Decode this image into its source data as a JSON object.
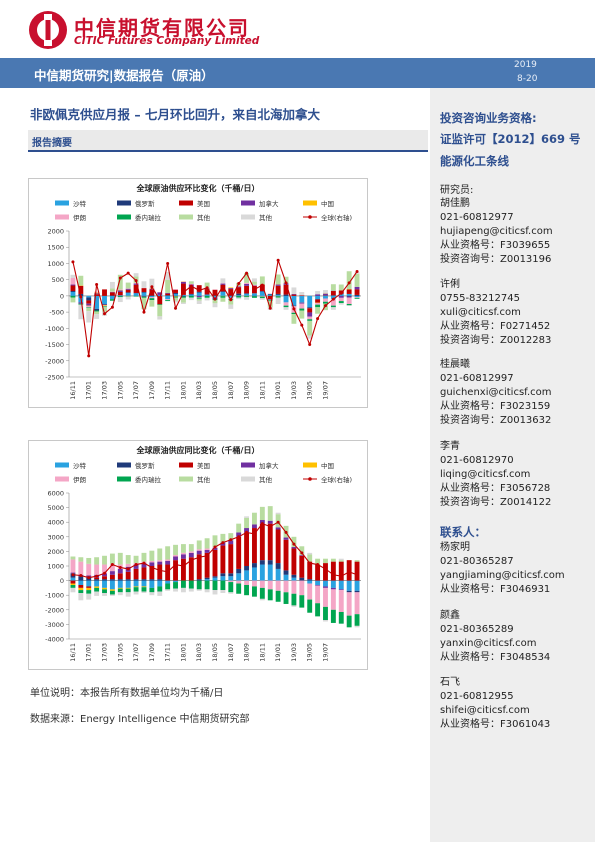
{
  "header": {
    "company_cn": "中信期货有限公司",
    "company_en": "CITIC Futures Company Limited",
    "banner": "中信期货研究|数据报告（原油）",
    "date_year": "2019",
    "date_md": "8-20"
  },
  "report": {
    "title": "非欧佩克供应月报 – 七月环比回升，来自北海加拿大",
    "section": "报告摘要",
    "unit_note": "单位说明：本报告所有数据单位均为千桶/日",
    "source_note": "数据来源：Energy Intelligence  中信期货研究部"
  },
  "sidebar": {
    "qual_title": "投资咨询业务资格:",
    "license": "证监许可【2012】669 号",
    "team": "能源化工条线",
    "researcher_label": "研究员:",
    "researchers": [
      {
        "name": "胡佳鹏",
        "phone": "021-60812977",
        "email": "hujiapeng@citicsf.com",
        "cert": "从业资格号：F3039655",
        "invest": "投资咨询号：Z0013196"
      },
      {
        "name": "许俐",
        "phone": "0755-83212745",
        "email": "xuli@citicsf.com",
        "cert": "从业资格号：F0271452",
        "invest": "投资咨询号：Z0012283"
      },
      {
        "name": "桂晨曦",
        "phone": "021-60812997",
        "email": "guichenxi@citicsf.com",
        "cert": "从业资格号：F3023159",
        "invest": "投资咨询号：Z0013632"
      },
      {
        "name": "李青",
        "phone": "021-60812970",
        "email": "liqing@citicsf.com",
        "cert": "从业资格号：F3056728",
        "invest": "投资咨询号：Z0014122"
      }
    ],
    "contact_label": "联系人：",
    "contacts": [
      {
        "name": "杨家明",
        "phone": "021-80365287",
        "email": "yangjiaming@citicsf.com",
        "cert": "从业资格号：F3046931"
      },
      {
        "name": "颜鑫",
        "phone": "021-80365289",
        "email": "yanxin@citicsf.com",
        "cert": "从业资格号：F3048534"
      },
      {
        "name": "石飞",
        "phone": "021-60812955",
        "email": "shifei@citicsf.com",
        "cert": "从业资格号：F3061043"
      }
    ]
  },
  "chart_data": [
    {
      "type": "bar",
      "title": "全球原油供应环比变化（千桶/日）",
      "legend": [
        "沙特",
        "俄罗斯",
        "美国",
        "加拿大",
        "中国",
        "伊朗",
        "委内瑞拉",
        "其他",
        "其他",
        "全球(右轴)"
      ],
      "colors": {
        "沙特": "#2aa2e0",
        "俄罗斯": "#1f3a7a",
        "美国": "#c00000",
        "加拿大": "#7030a0",
        "中国": "#ffc000",
        "伊朗": "#f4a6c6",
        "委内瑞拉": "#00a550",
        "其他": "#b8dca0",
        "其他2": "#d9d9d9",
        "全球": "#c00000"
      },
      "ylim": [
        -2500,
        2000
      ],
      "yticks": [
        2000,
        1500,
        1000,
        500,
        0,
        -500,
        -1000,
        -1500,
        -2000,
        -2500
      ],
      "xticks": [
        "16/11",
        "17/01",
        "17/03",
        "17/05",
        "17/07",
        "17/09",
        "17/11",
        "18/01",
        "18/03",
        "18/05",
        "18/07",
        "18/09",
        "18/11",
        "19/01",
        "19/03",
        "19/05",
        "19/07"
      ],
      "series": [
        {
          "name": "沙特",
          "values": [
            120,
            -200,
            -50,
            -400,
            -250,
            -100,
            20,
            90,
            80,
            100,
            -40,
            30,
            -100,
            60,
            30,
            40,
            100,
            30,
            -50,
            120,
            -60,
            20,
            60,
            80,
            130,
            40,
            30,
            -200,
            -300,
            -200,
            -350,
            -100,
            -80,
            -100,
            60,
            60,
            -40
          ]
        },
        {
          "name": "俄罗斯",
          "values": [
            30,
            60,
            -90,
            -50,
            -20,
            10,
            -10,
            20,
            10,
            20,
            10,
            -10,
            20,
            30,
            -20,
            20,
            30,
            20,
            10,
            20,
            10,
            50,
            20,
            -10,
            20,
            20,
            30,
            40,
            -20,
            -10,
            -30,
            -10,
            10,
            20,
            10,
            -20,
            30
          ]
        },
        {
          "name": "美国",
          "values": [
            170,
            250,
            -100,
            50,
            200,
            100,
            100,
            80,
            250,
            120,
            180,
            -250,
            50,
            100,
            350,
            210,
            200,
            160,
            180,
            200,
            200,
            200,
            230,
            230,
            200,
            -100,
            250,
            300,
            40,
            20,
            -130,
            -100,
            10,
            130,
            100,
            140,
            170
          ]
        },
        {
          "name": "加拿大",
          "values": [
            30,
            -40,
            -60,
            30,
            -10,
            10,
            50,
            30,
            40,
            -20,
            30,
            80,
            20,
            -10,
            50,
            80,
            -40,
            20,
            -50,
            40,
            30,
            20,
            60,
            10,
            0,
            -20,
            40,
            50,
            20,
            -30,
            -130,
            50,
            50,
            10,
            -60,
            -30,
            80
          ]
        },
        {
          "name": "中国",
          "values": [
            0,
            10,
            -10,
            20,
            -20,
            0,
            10,
            -10,
            0,
            0,
            10,
            0,
            0,
            -10,
            10,
            0,
            0,
            10,
            0,
            -10,
            20,
            0,
            -10,
            0,
            0,
            0,
            10,
            0,
            0,
            0,
            0,
            -10,
            10,
            0,
            0,
            10,
            0
          ]
        },
        {
          "name": "伊朗",
          "values": [
            200,
            0,
            -40,
            30,
            -20,
            10,
            20,
            10,
            20,
            10,
            -30,
            0,
            -30,
            20,
            10,
            20,
            -10,
            20,
            10,
            10,
            -30,
            10,
            30,
            20,
            -20,
            10,
            -10,
            -100,
            -200,
            -150,
            -80,
            -50,
            -100,
            -200,
            -100,
            -200,
            -20
          ]
        },
        {
          "name": "委内瑞拉",
          "values": [
            -50,
            -30,
            -20,
            -30,
            -20,
            -50,
            -30,
            -10,
            -20,
            -40,
            -60,
            -20,
            -30,
            -30,
            -40,
            -50,
            -40,
            -60,
            -30,
            -50,
            -30,
            -50,
            -30,
            -50,
            -50,
            -30,
            -40,
            -50,
            -40,
            -60,
            -50,
            -80,
            -60,
            -50,
            -60,
            -40,
            -30
          ]
        },
        {
          "name": "其他",
          "values": [
            -150,
            300,
            -100,
            -80,
            -150,
            100,
            450,
            180,
            200,
            -350,
            -200,
            -350,
            400,
            -100,
            -150,
            80,
            -60,
            150,
            -100,
            -120,
            -150,
            100,
            300,
            100,
            250,
            -200,
            300,
            200,
            -300,
            -250,
            -450,
            -200,
            -200,
            200,
            180,
            550,
            400
          ]
        },
        {
          "name": "其他2",
          "values": [
            100,
            -450,
            -350,
            -150,
            -120,
            200,
            -150,
            -90,
            100,
            200,
            300,
            -100,
            250,
            -50,
            -40,
            -80,
            -100,
            -80,
            -120,
            150,
            -130,
            -50,
            -80,
            100,
            -50,
            -80,
            -200,
            -80,
            200,
            100,
            -100,
            100,
            100,
            -80,
            -50,
            -20,
            50
          ]
        }
      ],
      "global": [
        1050,
        -30,
        -1850,
        350,
        -550,
        -350,
        550,
        700,
        470,
        -500,
        280,
        -120,
        1000,
        -380,
        110,
        300,
        170,
        250,
        -100,
        300,
        -120,
        380,
        700,
        200,
        330,
        -380,
        1100,
        400,
        -400,
        -900,
        -1500,
        -700,
        -300,
        -100,
        80,
        400,
        750
      ]
    },
    {
      "type": "bar",
      "title": "全球原油供应同比变化（千桶/日）",
      "legend": [
        "沙特",
        "俄罗斯",
        "美国",
        "加拿大",
        "中国",
        "伊朗",
        "委内瑞拉",
        "其他",
        "其他",
        "全球(右轴)"
      ],
      "ylim": [
        -4000,
        6000
      ],
      "yticks": [
        6000,
        5000,
        4000,
        3000,
        2000,
        1000,
        0,
        -1000,
        -2000,
        -3000,
        -4000
      ],
      "xticks": [
        "16/11",
        "17/01",
        "17/03",
        "17/05",
        "17/07",
        "17/09",
        "17/11",
        "18/01",
        "18/03",
        "18/05",
        "18/07",
        "18/09",
        "18/11",
        "19/01",
        "19/03",
        "19/05",
        "19/07"
      ],
      "series": [
        {
          "name": "沙特",
          "values": [
            200,
            -300,
            -400,
            -400,
            -500,
            -600,
            -500,
            -500,
            -400,
            -400,
            -500,
            -400,
            -200,
            -100,
            0,
            0,
            0,
            100,
            200,
            300,
            300,
            500,
            700,
            900,
            1100,
            1100,
            800,
            400,
            200,
            0,
            -200,
            -300,
            -400,
            -500,
            -600,
            -700,
            -700
          ]
        },
        {
          "name": "俄罗斯",
          "values": [
            300,
            300,
            200,
            100,
            100,
            100,
            100,
            100,
            100,
            100,
            100,
            100,
            0,
            0,
            0,
            0,
            100,
            100,
            100,
            200,
            200,
            300,
            300,
            300,
            300,
            300,
            400,
            300,
            200,
            200,
            100,
            0,
            0,
            0,
            0,
            -100,
            -100
          ]
        },
        {
          "name": "美国",
          "values": [
            -200,
            -200,
            -100,
            100,
            200,
            300,
            400,
            500,
            700,
            800,
            900,
            1000,
            1100,
            1400,
            1500,
            1600,
            1700,
            1700,
            1800,
            1900,
            2000,
            2200,
            2300,
            2400,
            2500,
            2500,
            2300,
            2100,
            1800,
            1500,
            1200,
            1100,
            1200,
            1300,
            1300,
            1400,
            1300
          ]
        },
        {
          "name": "加拿大",
          "values": [
            50,
            100,
            150,
            200,
            200,
            250,
            300,
            350,
            300,
            300,
            250,
            200,
            250,
            250,
            300,
            300,
            250,
            200,
            150,
            200,
            250,
            300,
            300,
            250,
            250,
            200,
            150,
            150,
            100,
            50,
            0,
            -50,
            -100,
            -100,
            -50,
            0,
            0
          ]
        },
        {
          "name": "中国",
          "values": [
            -100,
            -150,
            -150,
            -100,
            -100,
            -100,
            -50,
            -50,
            -50,
            -50,
            0,
            0,
            0,
            0,
            0,
            0,
            0,
            0,
            0,
            0,
            0,
            0,
            0,
            0,
            0,
            0,
            0,
            0,
            0,
            0,
            0,
            0,
            0,
            0,
            0,
            0,
            0
          ]
        },
        {
          "name": "伊朗",
          "values": [
            900,
            900,
            800,
            700,
            600,
            500,
            300,
            200,
            100,
            100,
            100,
            100,
            100,
            100,
            100,
            100,
            100,
            100,
            50,
            0,
            -100,
            -200,
            -300,
            -400,
            -500,
            -600,
            -700,
            -800,
            -900,
            -1000,
            -1100,
            -1200,
            -1300,
            -1400,
            -1500,
            -1600,
            -1500
          ]
        },
        {
          "name": "委内瑞拉",
          "values": [
            -200,
            -200,
            -250,
            -250,
            -250,
            -250,
            -250,
            -250,
            -300,
            -300,
            -300,
            -350,
            -400,
            -450,
            -500,
            -550,
            -600,
            -600,
            -650,
            -650,
            -700,
            -700,
            -700,
            -700,
            -750,
            -750,
            -750,
            -800,
            -800,
            -850,
            -900,
            -900,
            -900,
            -900,
            -800,
            -800,
            -800
          ]
        },
        {
          "name": "其他",
          "values": [
            200,
            300,
            400,
            500,
            600,
            700,
            800,
            600,
            500,
            600,
            700,
            800,
            900,
            700,
            600,
            500,
            600,
            700,
            800,
            600,
            500,
            600,
            700,
            800,
            900,
            1000,
            900,
            800,
            700,
            600,
            500,
            400,
            300,
            200,
            100,
            0,
            100
          ]
        },
        {
          "name": "其他2",
          "values": [
            -300,
            -500,
            -400,
            -300,
            -200,
            -100,
            -200,
            -300,
            -200,
            -100,
            -200,
            -300,
            -100,
            -200,
            -300,
            -200,
            -100,
            -200,
            -300,
            -200,
            -100,
            0,
            100,
            0,
            -100,
            0,
            100,
            0,
            -100,
            0,
            100,
            0,
            -100,
            0,
            100,
            0,
            -100
          ]
        }
      ],
      "global": [
        400,
        350,
        200,
        300,
        500,
        1100,
        900,
        800,
        1100,
        1200,
        900,
        700,
        600,
        1100,
        1000,
        1400,
        1600,
        1700,
        2300,
        2600,
        2800,
        3000,
        3300,
        3200,
        3900,
        3700,
        4000,
        3300,
        2500,
        1900,
        1200,
        1100,
        800,
        400,
        300,
        600,
        400
      ]
    }
  ]
}
